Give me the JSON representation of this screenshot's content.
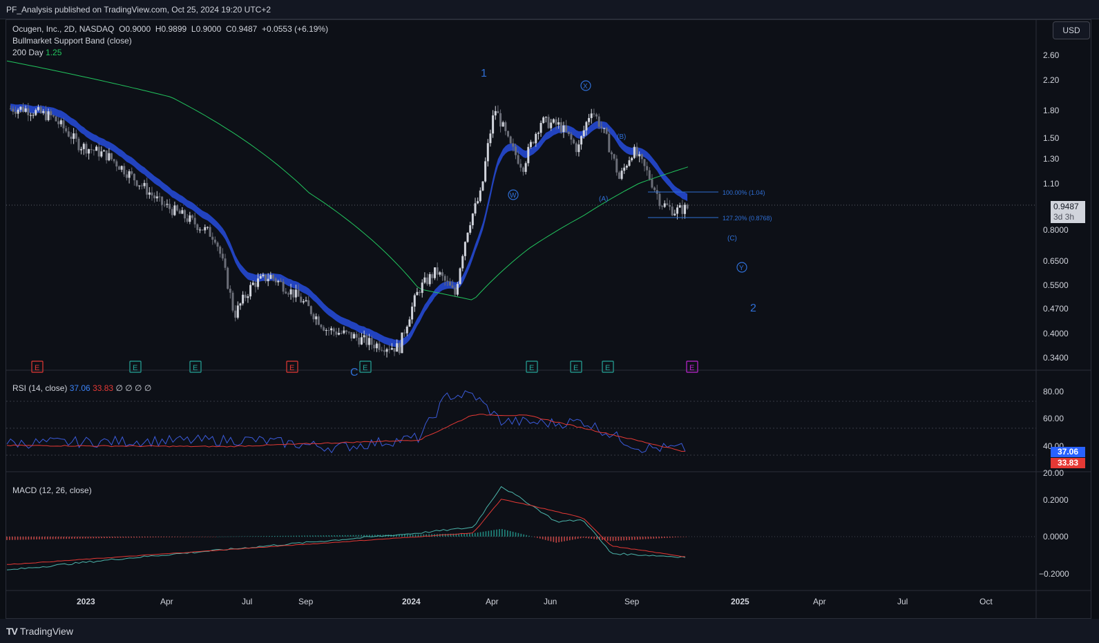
{
  "header": {
    "published": "PF_Analysis published on TradingView.com, Oct 25, 2024 19:20 UTC+2"
  },
  "legend": {
    "symbol": "Ocugen, Inc., 2D, NASDAQ",
    "open_label": "O",
    "open": "0.9000",
    "high_label": "H",
    "high": "0.9899",
    "low_label": "L",
    "low": "0.9000",
    "close_label": "C",
    "close": "0.9487",
    "change": "+0.0553 (+6.19%)",
    "indicator_band": "Bullmarket Support Band (close)",
    "ma_label": "200 Day",
    "ma_value": "1.25"
  },
  "currency": "USD",
  "price_badge": {
    "price": "0.9487",
    "countdown": "3d 3h"
  },
  "price_axis": [
    "2.60",
    "2.20",
    "1.80",
    "1.50",
    "1.30",
    "1.10",
    "0.8000",
    "0.6500",
    "0.5500",
    "0.4700",
    "0.4000",
    "0.3400"
  ],
  "time_axis": [
    "2023",
    "Apr",
    "Jul",
    "Sep",
    "2024",
    "Apr",
    "Jun",
    "Sep",
    "2025",
    "Apr",
    "Jul",
    "Oct"
  ],
  "wave_labels": {
    "w1": "1",
    "w2": "2",
    "wx": "X",
    "ww": "W",
    "wy": "Y",
    "wa": "(A)",
    "wb": "(B)",
    "wc": "(C)",
    "c": "C"
  },
  "fib": {
    "level1": "100.00% (1.04)",
    "level2": "127.20% (0.8768)"
  },
  "earnings_marker": "E",
  "rsi": {
    "title": "RSI (14, close)",
    "rsi_value": "37.06",
    "ma_value": "33.83",
    "empties": "∅ ∅ ∅ ∅",
    "axis": [
      "80.00",
      "60.00",
      "40.00",
      "20.00"
    ]
  },
  "macd": {
    "title": "MACD (12, 26, close)",
    "axis": [
      "0.2000",
      "0.0000",
      "−0.2000"
    ]
  },
  "footer": {
    "brand": "TradingView"
  },
  "colors": {
    "band": "#2447c8",
    "ma200": "#22c55e",
    "rsi": "#3b5bdb",
    "rsi_ma": "#e53935",
    "macd": "#4db6ac",
    "signal": "#e53935",
    "wave": "#2f6fd6",
    "earn_red": "#e53935",
    "earn_green": "#26a69a",
    "earn_purple": "#c026d3"
  },
  "chart_data": [
    {
      "type": "candlestick",
      "title": "Ocugen, Inc., 2D, NASDAQ",
      "y_scale": "log",
      "x_range": [
        "2022-10",
        "2025-11"
      ],
      "ylim": [
        0.32,
        2.8
      ],
      "close_path": [
        [
          "2022-10-20",
          1.85
        ],
        [
          "2022-11-20",
          1.75
        ],
        [
          "2022-12-20",
          1.45
        ],
        [
          "2023-01-20",
          1.35
        ],
        [
          "2023-02-20",
          1.15
        ],
        [
          "2023-03-20",
          0.98
        ],
        [
          "2023-04-20",
          0.88
        ],
        [
          "2023-05-20",
          0.78
        ],
        [
          "2023-06-10",
          0.46
        ],
        [
          "2023-07-01",
          0.57
        ],
        [
          "2023-07-20",
          0.6
        ],
        [
          "2023-08-20",
          0.52
        ],
        [
          "2023-09-20",
          0.42
        ],
        [
          "2023-10-20",
          0.4
        ],
        [
          "2023-11-10",
          0.38
        ],
        [
          "2023-12-10",
          0.37
        ],
        [
          "2024-01-01",
          0.55
        ],
        [
          "2024-01-20",
          0.62
        ],
        [
          "2024-02-10",
          0.53
        ],
        [
          "2024-02-25",
          0.85
        ],
        [
          "2024-03-10",
          1.05
        ],
        [
          "2024-03-25",
          1.85
        ],
        [
          "2024-04-10",
          1.45
        ],
        [
          "2024-04-25",
          1.25
        ],
        [
          "2024-05-15",
          1.7
        ],
        [
          "2024-06-05",
          1.65
        ],
        [
          "2024-06-25",
          1.4
        ],
        [
          "2024-07-10",
          1.85
        ],
        [
          "2024-07-25",
          1.55
        ],
        [
          "2024-08-10",
          1.15
        ],
        [
          "2024-08-25",
          1.4
        ],
        [
          "2024-09-10",
          1.2
        ],
        [
          "2024-09-25",
          0.98
        ],
        [
          "2024-10-10",
          0.93
        ],
        [
          "2024-10-25",
          0.9487
        ]
      ]
    },
    {
      "type": "line",
      "title": "200 Day",
      "series": [
        {
          "name": "200 Day",
          "x": [
            "2022-10",
            "2023-04",
            "2023-09",
            "2024-01",
            "2024-03",
            "2024-05",
            "2024-07",
            "2024-09",
            "2024-10-25"
          ],
          "values": [
            2.55,
            2.0,
            1.05,
            0.55,
            0.51,
            0.72,
            0.9,
            1.12,
            1.25
          ]
        }
      ]
    },
    {
      "type": "line",
      "title": "RSI (14, close)",
      "ylim": [
        20,
        90
      ],
      "series": [
        {
          "name": "RSI",
          "x": [
            "2022-10",
            "2023-03",
            "2023-07",
            "2023-10",
            "2024-01",
            "2024-02",
            "2024-03",
            "2024-04",
            "2024-06",
            "2024-07",
            "2024-09",
            "2024-10-25"
          ],
          "values": [
            42,
            44,
            45,
            38,
            47,
            85,
            86,
            62,
            60,
            62,
            38,
            37.06
          ]
        },
        {
          "name": "RSI MA",
          "x": [
            "2022-10",
            "2023-06",
            "2024-01",
            "2024-03",
            "2024-05",
            "2024-08",
            "2024-10-25"
          ],
          "values": [
            40,
            39,
            45,
            68,
            67,
            50,
            33.83
          ]
        }
      ]
    },
    {
      "type": "line",
      "title": "MACD (12, 26, close)",
      "ylim": [
        -0.25,
        0.28
      ],
      "series": [
        {
          "name": "MACD",
          "x": [
            "2022-10",
            "2023-02",
            "2023-09",
            "2024-01",
            "2024-03",
            "2024-04",
            "2024-05",
            "2024-06",
            "2024-07",
            "2024-08",
            "2024-10-25"
          ],
          "values": [
            -0.18,
            -0.12,
            -0.03,
            0.02,
            0.05,
            0.27,
            0.18,
            0.08,
            0.09,
            -0.09,
            -0.11
          ]
        },
        {
          "name": "Signal",
          "x": [
            "2022-10",
            "2023-04",
            "2024-01",
            "2024-03",
            "2024-04",
            "2024-05",
            "2024-07",
            "2024-08",
            "2024-10-25"
          ],
          "values": [
            -0.15,
            -0.09,
            0.0,
            0.02,
            0.2,
            0.17,
            0.1,
            -0.05,
            -0.11
          ]
        }
      ]
    }
  ]
}
